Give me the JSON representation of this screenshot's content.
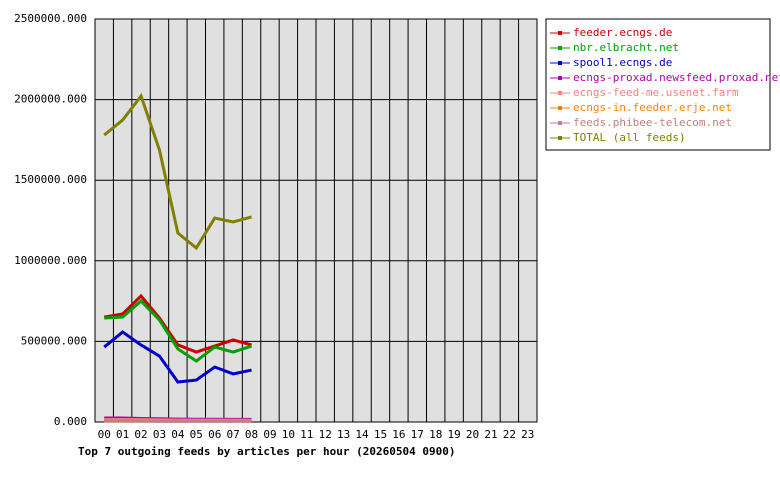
{
  "chart_data": {
    "type": "line",
    "title": "Top 7 outgoing feeds by articles per hour (20260504 0900)",
    "categories": [
      "00",
      "01",
      "02",
      "03",
      "04",
      "05",
      "06",
      "07",
      "08",
      "09",
      "10",
      "11",
      "12",
      "13",
      "14",
      "15",
      "16",
      "17",
      "18",
      "19",
      "20",
      "21",
      "22",
      "23"
    ],
    "ylim": [
      0,
      2500000
    ],
    "yticks": [
      {
        "value": 0,
        "label": "0.000"
      },
      {
        "value": 500000,
        "label": "500000.000"
      },
      {
        "value": 1000000,
        "label": "1000000.000"
      },
      {
        "value": 1500000,
        "label": "1500000.000"
      },
      {
        "value": 2000000,
        "label": "2000000.000"
      },
      {
        "value": 2500000,
        "label": "2500000.000"
      }
    ],
    "grid": true,
    "legend": "top-right",
    "series": [
      {
        "name": "feeder.ecngs.de",
        "color": "#cc0000",
        "values": [
          651000,
          670000,
          782000,
          645000,
          478000,
          434000,
          471000,
          509000,
          478000,
          null,
          null,
          null,
          null,
          null,
          null,
          null,
          null,
          null,
          null,
          null,
          null,
          null,
          null,
          null
        ]
      },
      {
        "name": "nbr.elbracht.net",
        "color": "#00a000",
        "values": [
          645000,
          651000,
          751000,
          633000,
          453000,
          378000,
          465000,
          434000,
          471000,
          null,
          null,
          null,
          null,
          null,
          null,
          null,
          null,
          null,
          null,
          null,
          null,
          null,
          null,
          null
        ]
      },
      {
        "name": "spool1.ecngs.de",
        "color": "#0000cc",
        "values": [
          465000,
          558000,
          478000,
          409000,
          248000,
          260000,
          341000,
          298000,
          322000,
          null,
          null,
          null,
          null,
          null,
          null,
          null,
          null,
          null,
          null,
          null,
          null,
          null,
          null,
          null
        ]
      },
      {
        "name": "ecngs-proxad.newsfeed.proxad.net",
        "color": "#b000b0",
        "values": [
          25000,
          25000,
          22000,
          20000,
          18000,
          17000,
          17000,
          16000,
          16000,
          null,
          null,
          null,
          null,
          null,
          null,
          null,
          null,
          null,
          null,
          null,
          null,
          null,
          null,
          null
        ]
      },
      {
        "name": "ecngs-feed-me.usenet.farm",
        "color": "#ff8080",
        "values": [
          15000,
          15000,
          14000,
          13000,
          12000,
          12000,
          12000,
          11000,
          11000,
          null,
          null,
          null,
          null,
          null,
          null,
          null,
          null,
          null,
          null,
          null,
          null,
          null,
          null,
          null
        ]
      },
      {
        "name": "ecngs-in.feeder.erje.net",
        "color": "#ff8000",
        "values": [
          8000,
          8000,
          7000,
          7000,
          6000,
          6000,
          6000,
          6000,
          6000,
          null,
          null,
          null,
          null,
          null,
          null,
          null,
          null,
          null,
          null,
          null,
          null,
          null,
          null,
          null
        ]
      },
      {
        "name": "feeds.phibee-telecom.net",
        "color": "#c08080",
        "values": [
          5000,
          5000,
          5000,
          4000,
          4000,
          4000,
          4000,
          4000,
          4000,
          null,
          null,
          null,
          null,
          null,
          null,
          null,
          null,
          null,
          null,
          null,
          null,
          null,
          null,
          null
        ]
      },
      {
        "name": "TOTAL (all feeds)",
        "color": "#808000",
        "values": [
          1780000,
          1873000,
          2022000,
          1687000,
          1172000,
          1079000,
          1265000,
          1241000,
          1272000,
          null,
          null,
          null,
          null,
          null,
          null,
          null,
          null,
          null,
          null,
          null,
          null,
          null,
          null,
          null
        ]
      }
    ]
  }
}
